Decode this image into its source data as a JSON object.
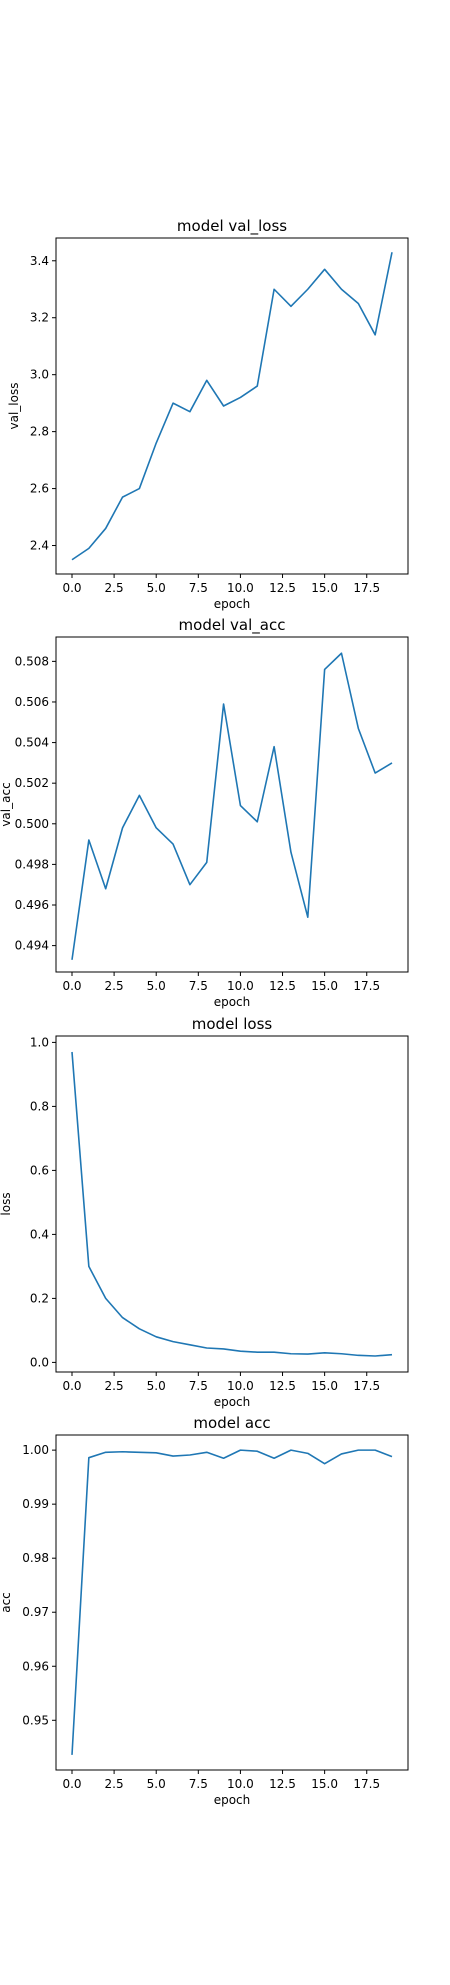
{
  "figure": {
    "line_color": "#1f77b4",
    "background": "#ffffff"
  },
  "chart_data": [
    {
      "type": "line",
      "title": "model val_loss",
      "xlabel": "epoch",
      "ylabel": "val_loss",
      "xlim": [
        -0.95,
        19.95
      ],
      "ylim": [
        2.3,
        3.48
      ],
      "xticks": [
        0.0,
        2.5,
        5.0,
        7.5,
        10.0,
        12.5,
        15.0,
        17.5
      ],
      "xtick_labels": [
        "0.0",
        "2.5",
        "5.0",
        "7.5",
        "10.0",
        "12.5",
        "15.0",
        "17.5"
      ],
      "yticks": [
        2.4,
        2.6,
        2.8,
        3.0,
        3.2,
        3.4
      ],
      "ytick_labels": [
        "2.4",
        "2.6",
        "2.8",
        "3.0",
        "3.2",
        "3.4"
      ],
      "grid": false,
      "x": [
        0,
        1,
        2,
        3,
        4,
        5,
        6,
        7,
        8,
        9,
        10,
        11,
        12,
        13,
        14,
        15,
        16,
        17,
        18,
        19
      ],
      "series": [
        {
          "values": [
            2.35,
            2.39,
            2.46,
            2.57,
            2.6,
            2.76,
            2.9,
            2.87,
            2.98,
            2.89,
            2.92,
            2.96,
            3.3,
            3.24,
            3.3,
            3.37,
            3.3,
            3.25,
            3.14,
            3.43
          ]
        }
      ]
    },
    {
      "type": "line",
      "title": "model val_acc",
      "xlabel": "epoch",
      "ylabel": "val_acc",
      "xlim": [
        -0.95,
        19.95
      ],
      "ylim": [
        0.4927,
        0.5092
      ],
      "xticks": [
        0.0,
        2.5,
        5.0,
        7.5,
        10.0,
        12.5,
        15.0,
        17.5
      ],
      "xtick_labels": [
        "0.0",
        "2.5",
        "5.0",
        "7.5",
        "10.0",
        "12.5",
        "15.0",
        "17.5"
      ],
      "yticks": [
        0.494,
        0.496,
        0.498,
        0.5,
        0.502,
        0.504,
        0.506,
        0.508
      ],
      "ytick_labels": [
        "0.494",
        "0.496",
        "0.498",
        "0.500",
        "0.502",
        "0.504",
        "0.506",
        "0.508"
      ],
      "grid": false,
      "x": [
        0,
        1,
        2,
        3,
        4,
        5,
        6,
        7,
        8,
        9,
        10,
        11,
        12,
        13,
        14,
        15,
        16,
        17,
        18,
        19
      ],
      "series": [
        {
          "values": [
            0.4933,
            0.4992,
            0.4968,
            0.4998,
            0.5014,
            0.4998,
            0.499,
            0.497,
            0.4981,
            0.5059,
            0.5009,
            0.5001,
            0.5038,
            0.4986,
            0.4954,
            0.5076,
            0.5084,
            0.5047,
            0.5025,
            0.503
          ]
        }
      ]
    },
    {
      "type": "line",
      "title": "model loss",
      "xlabel": "epoch",
      "ylabel": "loss",
      "xlim": [
        -0.95,
        19.95
      ],
      "ylim": [
        -0.03,
        1.02
      ],
      "xticks": [
        0.0,
        2.5,
        5.0,
        7.5,
        10.0,
        12.5,
        15.0,
        17.5
      ],
      "xtick_labels": [
        "0.0",
        "2.5",
        "5.0",
        "7.5",
        "10.0",
        "12.5",
        "15.0",
        "17.5"
      ],
      "yticks": [
        0.0,
        0.2,
        0.4,
        0.6,
        0.8,
        1.0
      ],
      "ytick_labels": [
        "0.0",
        "0.2",
        "0.4",
        "0.6",
        "0.8",
        "1.0"
      ],
      "grid": false,
      "x": [
        0,
        1,
        2,
        3,
        4,
        5,
        6,
        7,
        8,
        9,
        10,
        11,
        12,
        13,
        14,
        15,
        16,
        17,
        18,
        19
      ],
      "series": [
        {
          "values": [
            0.97,
            0.3,
            0.2,
            0.14,
            0.105,
            0.08,
            0.065,
            0.055,
            0.045,
            0.042,
            0.035,
            0.032,
            0.032,
            0.027,
            0.026,
            0.03,
            0.027,
            0.022,
            0.02,
            0.024
          ]
        }
      ]
    },
    {
      "type": "line",
      "title": "model acc",
      "xlabel": "epoch",
      "ylabel": "acc",
      "xlim": [
        -0.95,
        19.95
      ],
      "ylim": [
        0.9408,
        1.0028
      ],
      "xticks": [
        0.0,
        2.5,
        5.0,
        7.5,
        10.0,
        12.5,
        15.0,
        17.5
      ],
      "xtick_labels": [
        "0.0",
        "2.5",
        "5.0",
        "7.5",
        "10.0",
        "12.5",
        "15.0",
        "17.5"
      ],
      "yticks": [
        0.95,
        0.96,
        0.97,
        0.98,
        0.99,
        1.0
      ],
      "ytick_labels": [
        "0.95",
        "0.96",
        "0.97",
        "0.98",
        "0.99",
        "1.00"
      ],
      "grid": false,
      "x": [
        0,
        1,
        2,
        3,
        4,
        5,
        6,
        7,
        8,
        9,
        10,
        11,
        12,
        13,
        14,
        15,
        16,
        17,
        18,
        19
      ],
      "series": [
        {
          "values": [
            0.9436,
            0.9986,
            0.9996,
            0.9997,
            0.9996,
            0.9995,
            0.9989,
            0.9991,
            0.9996,
            0.9985,
            1.0,
            0.9998,
            0.9985,
            1.0,
            0.9994,
            0.9975,
            0.9993,
            1.0,
            1.0,
            0.9988
          ]
        }
      ]
    }
  ]
}
